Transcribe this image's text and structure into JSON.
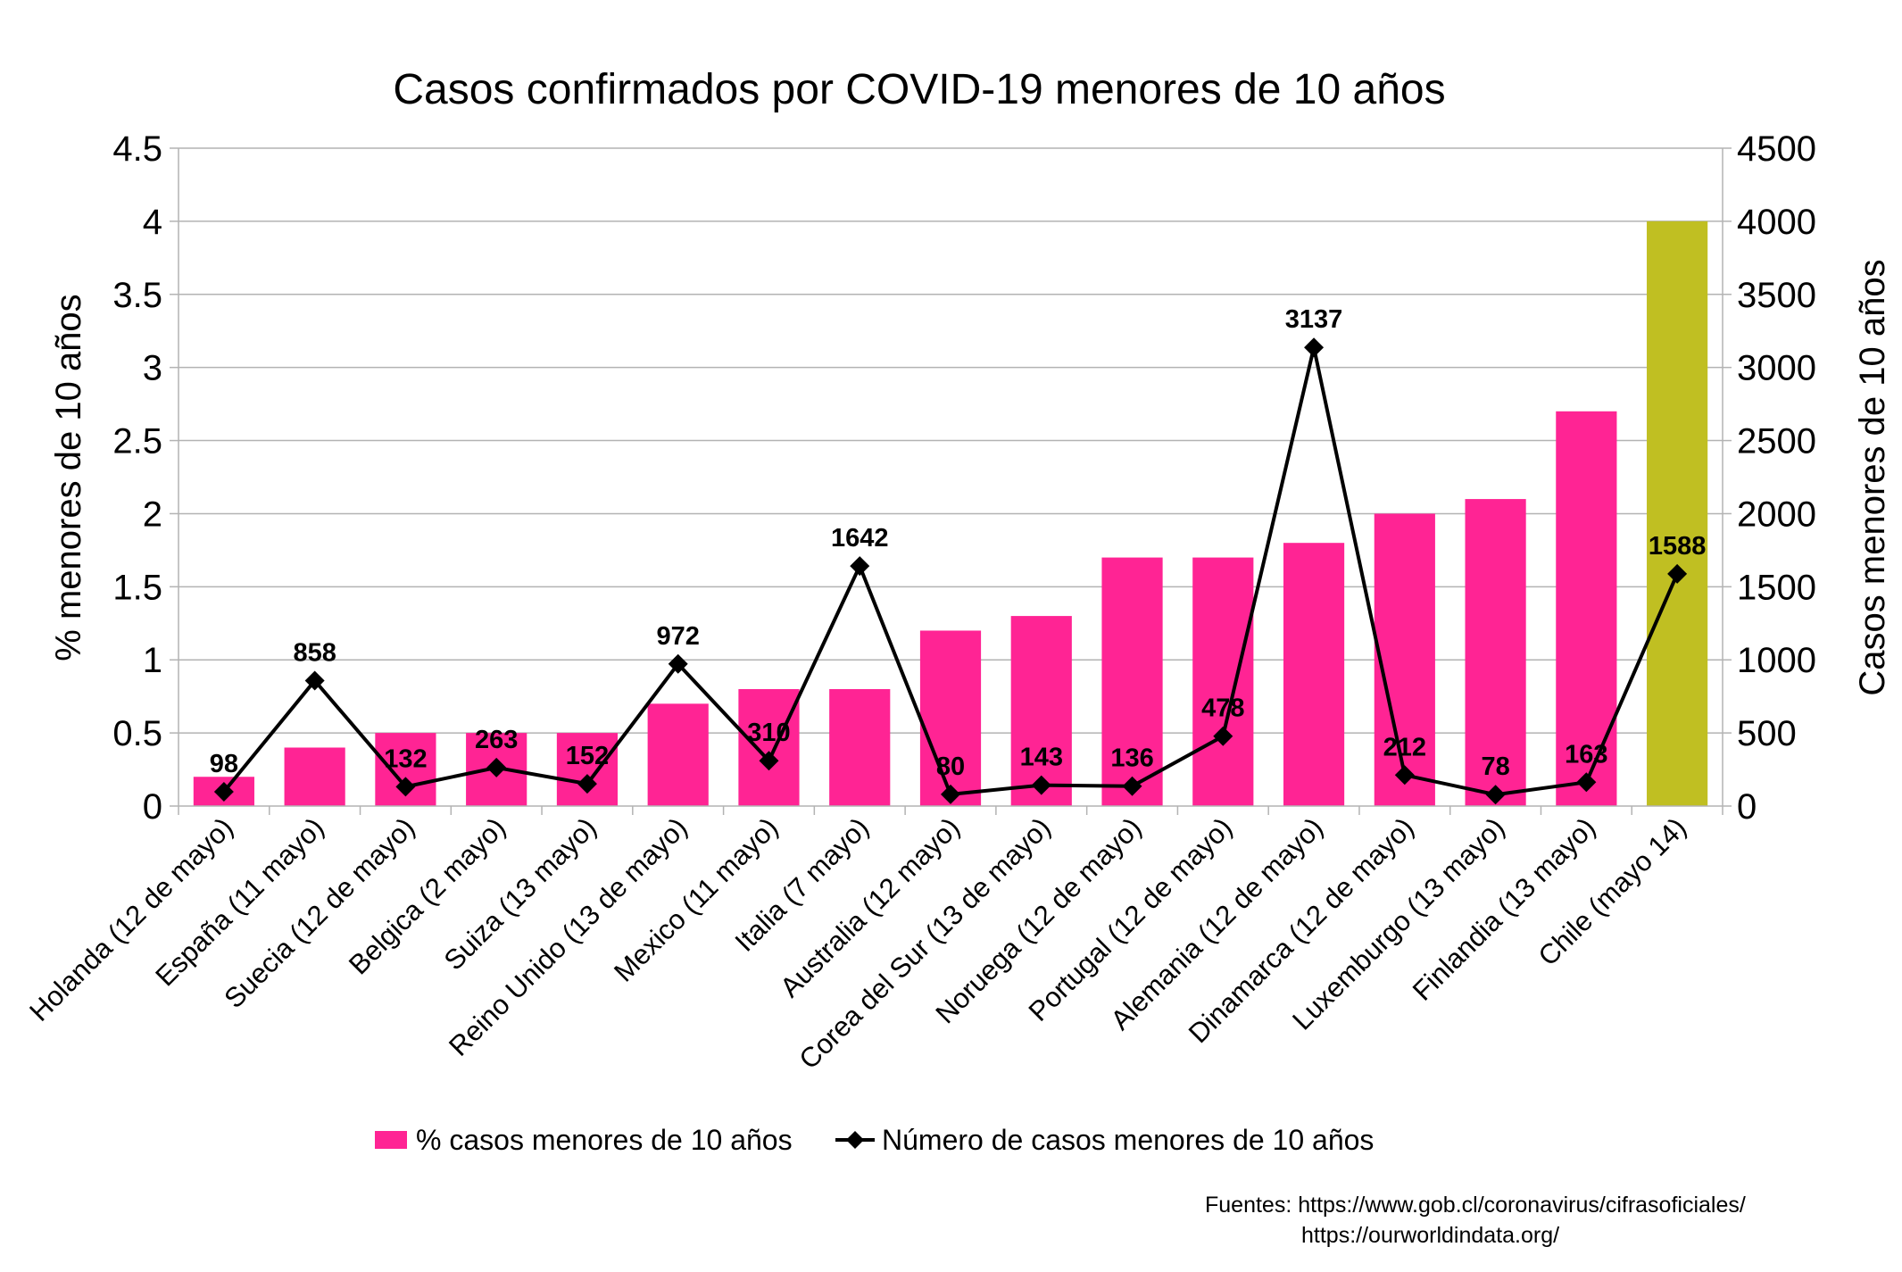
{
  "chart_data": {
    "type": "bar",
    "title": "Casos confirmados por COVID-19 menores de 10 años",
    "ylabel": "% menores de 10 años",
    "y2label": "Casos menores de 10 años",
    "ylim": [
      0,
      4.5
    ],
    "y2lim": [
      0,
      4500
    ],
    "yticks": [
      "0",
      "0.5",
      "1",
      "1.5",
      "2",
      "2.5",
      "3",
      "3.5",
      "4",
      "4.5"
    ],
    "y2ticks": [
      "0",
      "500",
      "1000",
      "1500",
      "2000",
      "2500",
      "3000",
      "3500",
      "4000",
      "4500"
    ],
    "grid": true,
    "legend_position": "bottom",
    "categories": [
      "Holanda (12 de mayo)",
      "España (11 mayo)",
      "Suecia (12 de mayo)",
      "Belgica (2 mayo)",
      "Suiza (13 mayo)",
      "Reino Unido (13 de mayo)",
      "Mexico (11 mayo)",
      "Italia (7 mayo)",
      "Australia (12 mayo)",
      "Corea del Sur (13 de mayo)",
      "Noruega (12 de mayo)",
      "Portugal (12 de mayo)",
      "Alemania (12 de mayo)",
      "Dinamarca (12 de mayo)",
      "Luxemburgo (13 mayo)",
      "Finlandia (13 mayo)",
      "Chile (mayo 14)"
    ],
    "series": [
      {
        "name": "% casos menores de 10 años",
        "type": "bar",
        "axis": "left",
        "color": "#ff2494",
        "highlight_color": "#c0bf22",
        "highlight_index": 16,
        "values": [
          0.2,
          0.4,
          0.5,
          0.5,
          0.5,
          0.7,
          0.8,
          0.8,
          1.2,
          1.3,
          1.7,
          1.7,
          1.8,
          2.0,
          2.1,
          2.7,
          4.0
        ]
      },
      {
        "name": "Número de casos menores de 10 años",
        "type": "line",
        "axis": "right",
        "color": "#000000",
        "marker": "diamond",
        "values": [
          98,
          858,
          132,
          263,
          152,
          972,
          310,
          1642,
          80,
          143,
          136,
          478,
          3137,
          212,
          78,
          163,
          1588
        ],
        "labels": [
          "98",
          "858",
          "132",
          "263",
          "152",
          "972",
          "310",
          "1642",
          "80",
          "143",
          "136",
          "478",
          "3137",
          "212",
          "78",
          "163",
          "1588"
        ]
      }
    ]
  },
  "sources": {
    "label": "Fuentes:",
    "line1": "https://www.gob.cl/coronavirus/cifrasoficiales/",
    "line2": "https://ourworldindata.org/"
  }
}
